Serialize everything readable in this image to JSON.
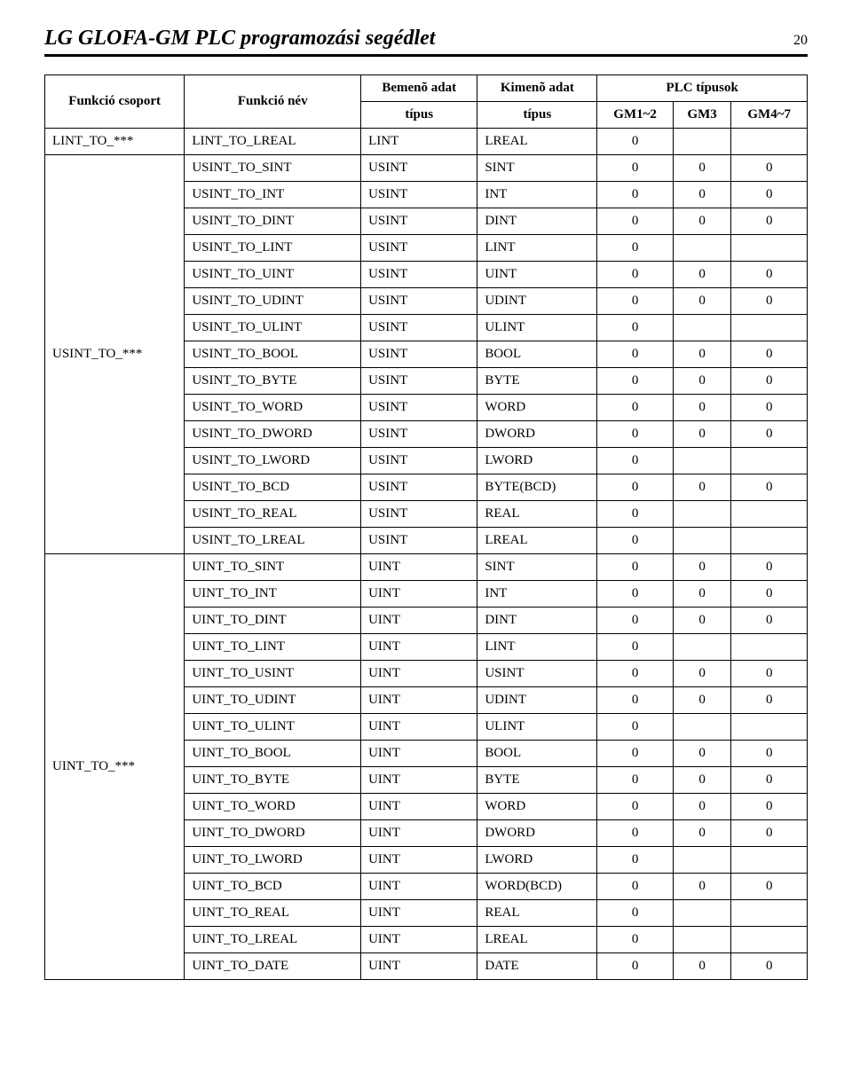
{
  "header": {
    "title": "LG GLOFA-GM PLC programozási segédlet",
    "page_number": "20"
  },
  "table": {
    "headers": {
      "col1": "Funkció csoport",
      "col2": "Funkció név",
      "col3_top": "Bemenõ adat",
      "col3_bot": "típus",
      "col4_top": "Kimenõ adat",
      "col4_bot": "típus",
      "col5_top": "PLC típusok",
      "col5a": "GM1~2",
      "col5b": "GM3",
      "col5c": "GM4~7"
    },
    "groups": [
      {
        "label": "LINT_TO_***",
        "rows": [
          {
            "fn": "LINT_TO_LREAL",
            "in": "LINT",
            "out": "LREAL",
            "g1": "0",
            "g2": "",
            "g3": ""
          }
        ]
      },
      {
        "label": "USINT_TO_***",
        "rows": [
          {
            "fn": "USINT_TO_SINT",
            "in": "USINT",
            "out": "SINT",
            "g1": "0",
            "g2": "0",
            "g3": "0"
          },
          {
            "fn": "USINT_TO_INT",
            "in": "USINT",
            "out": "INT",
            "g1": "0",
            "g2": "0",
            "g3": "0"
          },
          {
            "fn": "USINT_TO_DINT",
            "in": "USINT",
            "out": "DINT",
            "g1": "0",
            "g2": "0",
            "g3": "0"
          },
          {
            "fn": "USINT_TO_LINT",
            "in": "USINT",
            "out": "LINT",
            "g1": "0",
            "g2": "",
            "g3": ""
          },
          {
            "fn": "USINT_TO_UINT",
            "in": "USINT",
            "out": "UINT",
            "g1": "0",
            "g2": "0",
            "g3": "0"
          },
          {
            "fn": "USINT_TO_UDINT",
            "in": "USINT",
            "out": "UDINT",
            "g1": "0",
            "g2": "0",
            "g3": "0"
          },
          {
            "fn": "USINT_TO_ULINT",
            "in": "USINT",
            "out": "ULINT",
            "g1": "0",
            "g2": "",
            "g3": ""
          },
          {
            "fn": "USINT_TO_BOOL",
            "in": "USINT",
            "out": "BOOL",
            "g1": "0",
            "g2": "0",
            "g3": "0"
          },
          {
            "fn": "USINT_TO_BYTE",
            "in": "USINT",
            "out": "BYTE",
            "g1": "0",
            "g2": "0",
            "g3": "0"
          },
          {
            "fn": "USINT_TO_WORD",
            "in": "USINT",
            "out": "WORD",
            "g1": "0",
            "g2": "0",
            "g3": "0"
          },
          {
            "fn": "USINT_TO_DWORD",
            "in": "USINT",
            "out": "DWORD",
            "g1": "0",
            "g2": "0",
            "g3": "0"
          },
          {
            "fn": "USINT_TO_LWORD",
            "in": "USINT",
            "out": "LWORD",
            "g1": "0",
            "g2": "",
            "g3": ""
          },
          {
            "fn": "USINT_TO_BCD",
            "in": "USINT",
            "out": "BYTE(BCD)",
            "g1": "0",
            "g2": "0",
            "g3": "0"
          },
          {
            "fn": "USINT_TO_REAL",
            "in": "USINT",
            "out": "REAL",
            "g1": "0",
            "g2": "",
            "g3": ""
          },
          {
            "fn": "USINT_TO_LREAL",
            "in": "USINT",
            "out": "LREAL",
            "g1": "0",
            "g2": "",
            "g3": ""
          }
        ]
      },
      {
        "label": "UINT_TO_***",
        "rows": [
          {
            "fn": "UINT_TO_SINT",
            "in": "UINT",
            "out": "SINT",
            "g1": "0",
            "g2": "0",
            "g3": "0"
          },
          {
            "fn": "UINT_TO_INT",
            "in": "UINT",
            "out": "INT",
            "g1": "0",
            "g2": "0",
            "g3": "0"
          },
          {
            "fn": "UINT_TO_DINT",
            "in": "UINT",
            "out": "DINT",
            "g1": "0",
            "g2": "0",
            "g3": "0"
          },
          {
            "fn": "UINT_TO_LINT",
            "in": "UINT",
            "out": "LINT",
            "g1": "0",
            "g2": "",
            "g3": ""
          },
          {
            "fn": "UINT_TO_USINT",
            "in": "UINT",
            "out": "USINT",
            "g1": "0",
            "g2": "0",
            "g3": "0"
          },
          {
            "fn": "UINT_TO_UDINT",
            "in": "UINT",
            "out": "UDINT",
            "g1": "0",
            "g2": "0",
            "g3": "0"
          },
          {
            "fn": "UINT_TO_ULINT",
            "in": "UINT",
            "out": "ULINT",
            "g1": "0",
            "g2": "",
            "g3": ""
          },
          {
            "fn": "UINT_TO_BOOL",
            "in": "UINT",
            "out": "BOOL",
            "g1": "0",
            "g2": "0",
            "g3": "0"
          },
          {
            "fn": "UINT_TO_BYTE",
            "in": "UINT",
            "out": "BYTE",
            "g1": "0",
            "g2": "0",
            "g3": "0"
          },
          {
            "fn": "UINT_TO_WORD",
            "in": "UINT",
            "out": "WORD",
            "g1": "0",
            "g2": "0",
            "g3": "0"
          },
          {
            "fn": "UINT_TO_DWORD",
            "in": "UINT",
            "out": "DWORD",
            "g1": "0",
            "g2": "0",
            "g3": "0"
          },
          {
            "fn": "UINT_TO_LWORD",
            "in": "UINT",
            "out": "LWORD",
            "g1": "0",
            "g2": "",
            "g3": ""
          },
          {
            "fn": "UINT_TO_BCD",
            "in": "UINT",
            "out": "WORD(BCD)",
            "g1": "0",
            "g2": "0",
            "g3": "0"
          },
          {
            "fn": "UINT_TO_REAL",
            "in": "UINT",
            "out": "REAL",
            "g1": "0",
            "g2": "",
            "g3": ""
          },
          {
            "fn": "UINT_TO_LREAL",
            "in": "UINT",
            "out": "LREAL",
            "g1": "0",
            "g2": "",
            "g3": ""
          },
          {
            "fn": "UINT_TO_DATE",
            "in": "UINT",
            "out": "DATE",
            "g1": "0",
            "g2": "0",
            "g3": "0"
          }
        ]
      }
    ]
  }
}
